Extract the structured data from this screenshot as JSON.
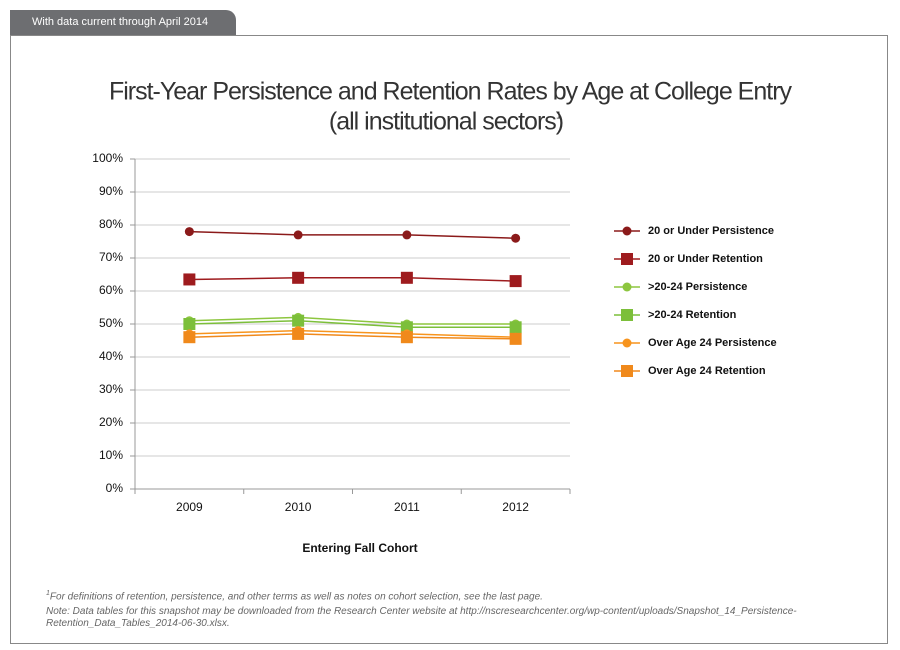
{
  "header": {
    "tab": "With data current through April 2014"
  },
  "chart_data": {
    "type": "line",
    "title": "First-Year Persistence and Retention Rates by Age at College Entry",
    "subtitle": "(all institutional sectors)",
    "subtitle_note": "1",
    "x_label": "Entering Fall Cohort",
    "categories": [
      "2009",
      "2010",
      "2011",
      "2012"
    ],
    "series": [
      {
        "name": "20 or Under Persistence",
        "color": "#8b1a1a",
        "marker": "circle",
        "values": [
          78,
          77,
          77,
          76
        ]
      },
      {
        "name": "20 or Under Retention",
        "color": "#9e1b1e",
        "marker": "square",
        "values": [
          63.5,
          64,
          64,
          63
        ]
      },
      {
        "name": ">20-24 Persistence",
        "color": "#8dc63f",
        "marker": "circle",
        "values": [
          51,
          52,
          50,
          50
        ]
      },
      {
        "name": ">20-24 Retention",
        "color": "#7cbf3a",
        "marker": "square",
        "values": [
          50,
          51,
          49,
          49
        ]
      },
      {
        "name": "Over Age 24 Persistence",
        "color": "#f7941d",
        "marker": "circle",
        "values": [
          47,
          48,
          47,
          46
        ]
      },
      {
        "name": "Over Age 24 Retention",
        "color": "#f0891b",
        "marker": "square",
        "values": [
          46,
          47,
          46,
          45.5
        ]
      }
    ],
    "ylim": [
      0,
      100
    ],
    "yticks": [
      {
        "value": 0,
        "label": "0%"
      },
      {
        "value": 10,
        "label": "10%"
      },
      {
        "value": 20,
        "label": "20%"
      },
      {
        "value": 30,
        "label": "30%"
      },
      {
        "value": 40,
        "label": "40%"
      },
      {
        "value": 50,
        "label": "50%"
      },
      {
        "value": 60,
        "label": "60%"
      },
      {
        "value": 70,
        "label": "70%"
      },
      {
        "value": 80,
        "label": "80%"
      },
      {
        "value": 90,
        "label": "90%"
      },
      {
        "value": 100,
        "label": "100%"
      }
    ],
    "grid": true,
    "legend": "right"
  },
  "footnotes": [
    {
      "marker": "1",
      "text": "For definitions of retention, persistence, and other terms as well as notes on cohort selection, see the last page."
    },
    {
      "text": "Note: Data tables for this snapshot may be downloaded from the Research Center website at http://nscresearchcenter.org/wp-content/uploads/Snapshot_14_Persistence-Retention_Data_Tables_2014-06-30.xlsx."
    }
  ]
}
